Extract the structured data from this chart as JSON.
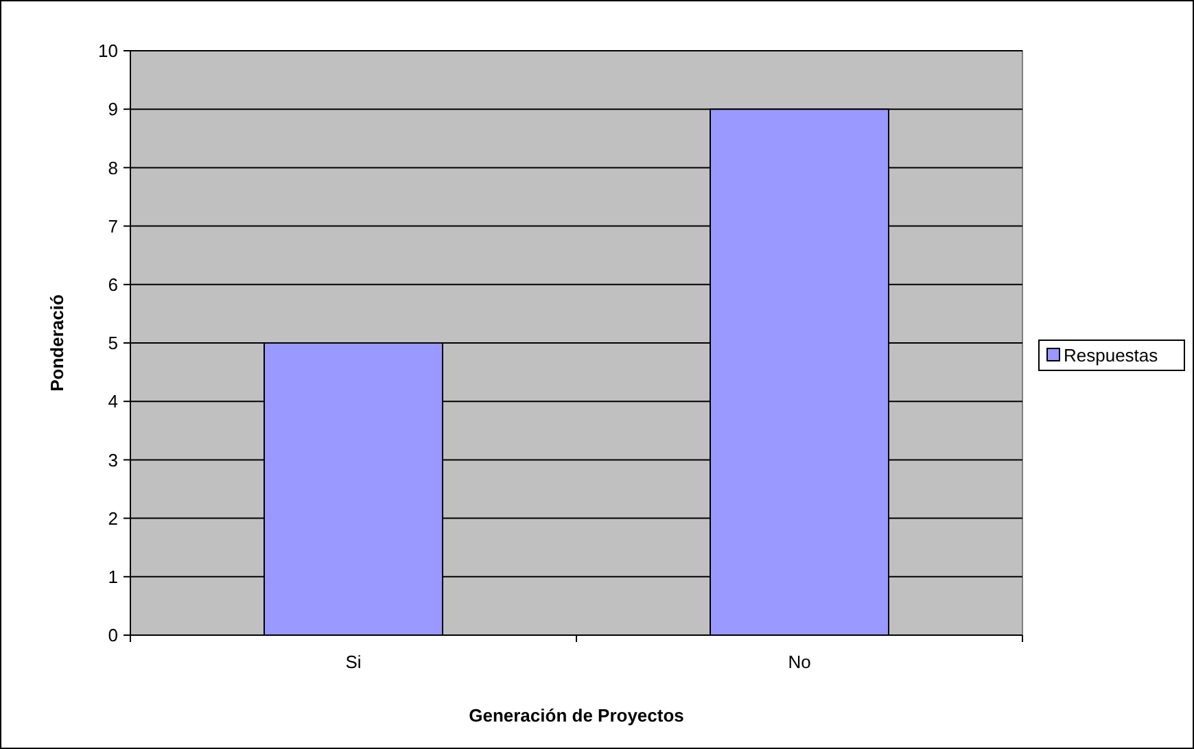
{
  "chart_data": {
    "type": "bar",
    "xlabel": "Generación de Proyectos",
    "ylabel": "Ponderació",
    "categories": [
      "Si",
      "No"
    ],
    "series": [
      {
        "name": "Respuestas",
        "color": "#9999ff",
        "values": [
          5,
          9
        ]
      }
    ],
    "ylim": [
      0,
      10
    ],
    "yticks": [
      0,
      1,
      2,
      3,
      4,
      5,
      6,
      7,
      8,
      9,
      10
    ],
    "grid": "y",
    "legend": "right"
  }
}
